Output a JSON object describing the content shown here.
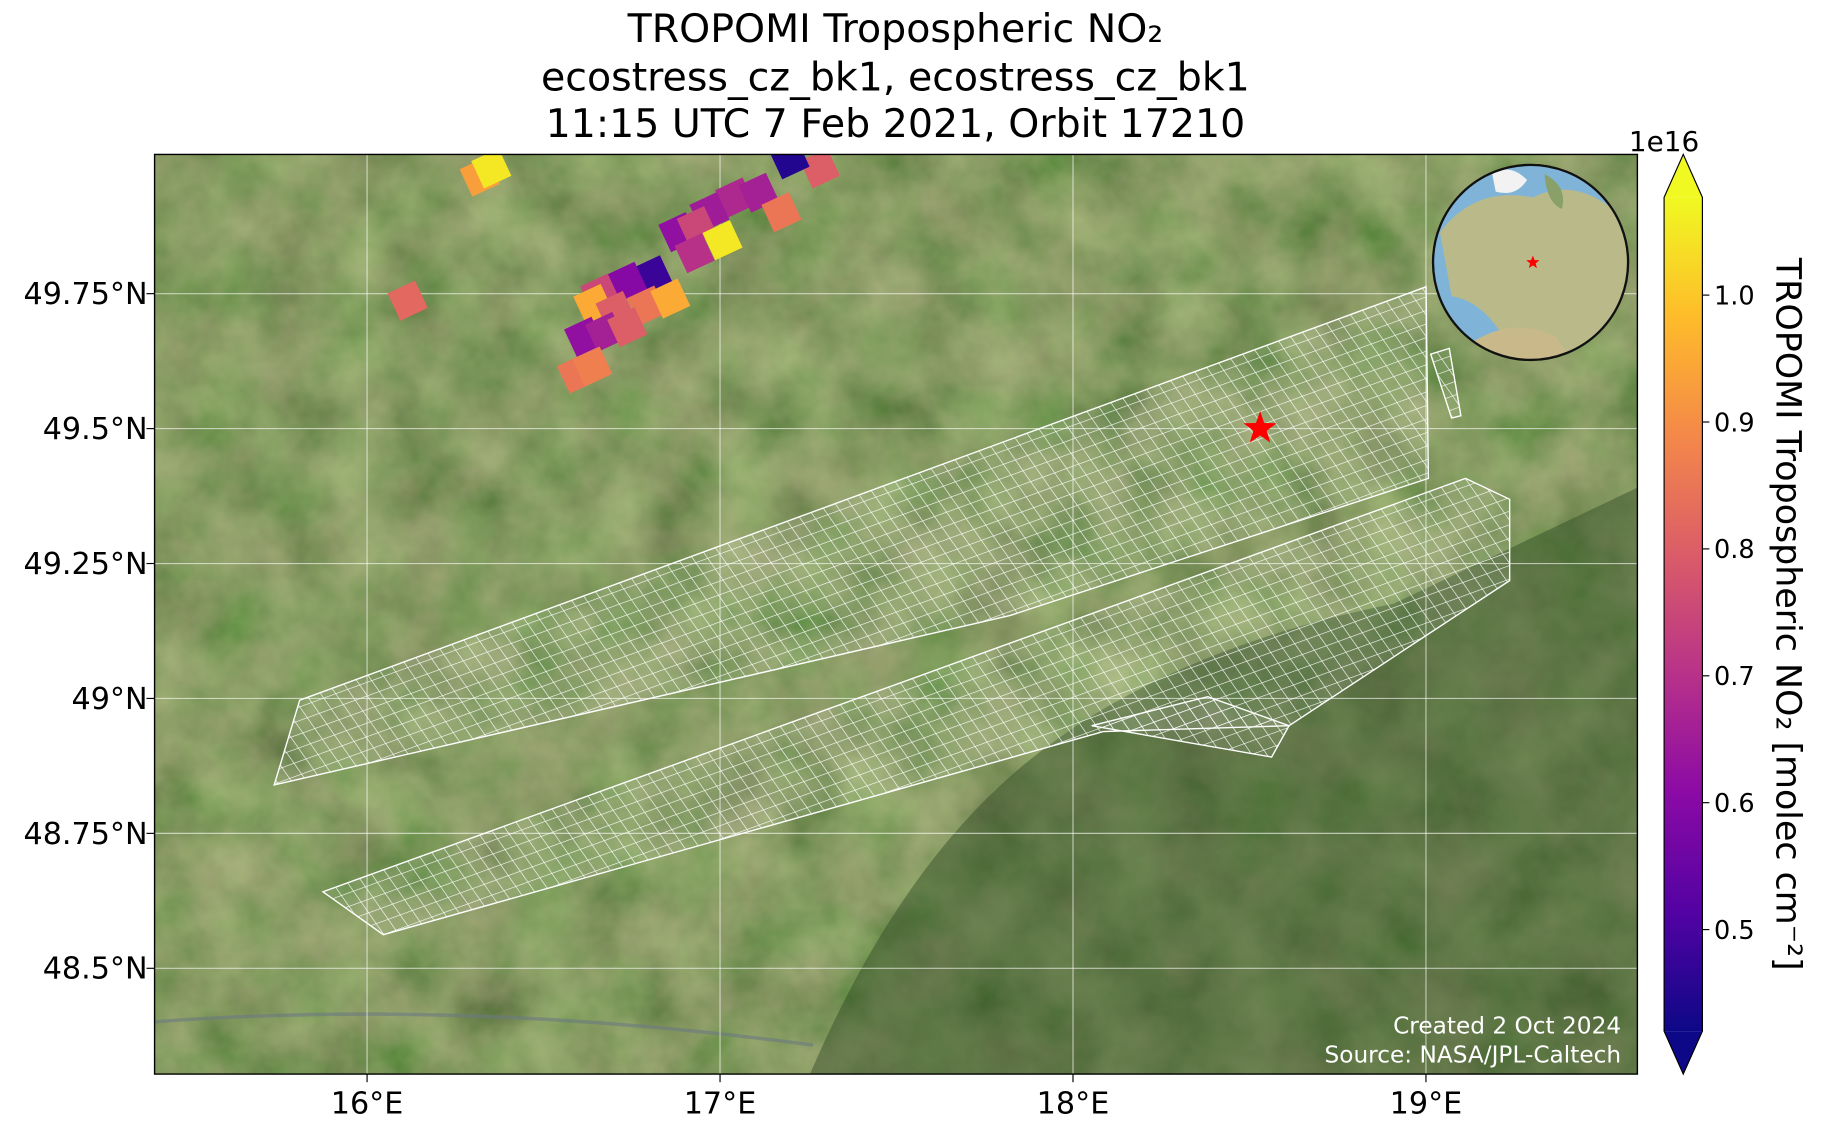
{
  "chart_data": {
    "type": "map",
    "title": [
      "TROPOMI Tropospheric NO₂",
      "ecostress_cz_bk1, ecostress_cz_bk1",
      "11:15 UTC 7 Feb 2021, Orbit 17210"
    ],
    "xlim": [
      15.398,
      19.599
    ],
    "ylim": [
      48.304,
      50.008
    ],
    "xticks": [
      {
        "value": 16,
        "label": "16°E"
      },
      {
        "value": 17,
        "label": "17°E"
      },
      {
        "value": 18,
        "label": "18°E"
      },
      {
        "value": 19,
        "label": "19°E"
      }
    ],
    "yticks": [
      {
        "value": 48.5,
        "label": "48.5°N"
      },
      {
        "value": 48.75,
        "label": "48.75°N"
      },
      {
        "value": 49,
        "label": "49°N"
      },
      {
        "value": 49.25,
        "label": "49.25°N"
      },
      {
        "value": 49.5,
        "label": "49.5°N"
      },
      {
        "value": 49.75,
        "label": "49.75°N"
      }
    ],
    "grid": true,
    "pixels": {
      "lon": [
        16.319,
        16.352,
        16.115,
        17.283,
        17.197,
        17.043,
        17.109,
        16.97,
        16.882,
        16.934,
        17.007,
        17.174,
        16.928,
        16.809,
        16.737,
        16.661,
        16.641,
        16.704,
        16.793,
        16.859,
        16.615,
        16.674,
        16.737,
        16.595,
        16.638
      ],
      "lat": [
        49.967,
        49.982,
        49.737,
        49.982,
        49.999,
        49.928,
        49.937,
        49.901,
        49.864,
        49.875,
        49.849,
        49.901,
        49.825,
        49.784,
        49.772,
        49.75,
        49.731,
        49.718,
        49.728,
        49.741,
        49.67,
        49.679,
        49.688,
        49.602,
        49.615
      ],
      "values": [
        0.93,
        1.05,
        0.82,
        0.8,
        0.45,
        0.68,
        0.66,
        0.65,
        0.62,
        0.75,
        1.05,
        0.85,
        0.7,
        0.48,
        0.6,
        0.75,
        0.95,
        0.8,
        0.85,
        0.95,
        0.62,
        0.66,
        0.8,
        0.85,
        0.87
      ]
    },
    "marker": {
      "lon": 18.53,
      "lat": 49.5,
      "color": "#ff0000"
    },
    "colorbar": {
      "colormap": "plasma",
      "clim": [
        0.42,
        1.077
      ],
      "ticks": [
        0.5,
        0.6,
        0.7,
        0.8,
        0.9,
        {
          "value": 1.0,
          "label": "1.0"
        }
      ],
      "offset_label": "1e16",
      "label": "TROPOMI Tropospheric NO₂ [molec cm⁻²]"
    },
    "credits": [
      "Created 2 Oct 2024",
      "Source: NASA/JPL-Caltech"
    ]
  }
}
